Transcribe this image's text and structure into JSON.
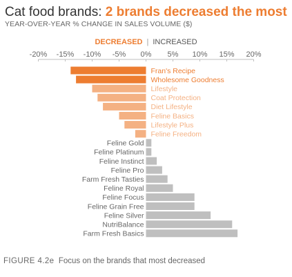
{
  "title": {
    "prefix": "Cat food brands: ",
    "highlight": "2 brands decreased the most"
  },
  "subtitle": "YEAR-OVER-YEAR % CHANGE IN SALES VOLUME ($)",
  "legend": {
    "decreased": "DECREASED",
    "separator": "|",
    "increased": "INCREASED"
  },
  "caption": {
    "figure": "FIGURE 4.2e",
    "text": "Focus on the brands that most decreased"
  },
  "colors": {
    "top_decrease": "#ed7d31",
    "other_decrease": "#f4b183",
    "increase": "#bfbfbf",
    "decrease_label": "#ed7d31",
    "other_decrease_label": "#f4b183",
    "increase_label": "#666666",
    "axis": "#bfbfbf",
    "tick_label": "#666666"
  },
  "chart_data": {
    "type": "bar",
    "orientation": "horizontal",
    "title": "Cat food brands: 2 brands decreased the most",
    "subtitle": "YEAR-OVER-YEAR % CHANGE IN SALES VOLUME ($)",
    "xlim": [
      -20,
      20
    ],
    "xticks": [
      -20,
      -15,
      -10,
      -5,
      0,
      5,
      10,
      15,
      20
    ],
    "xtick_labels": [
      "-20%",
      "-15%",
      "-10%",
      "-5%",
      "0%",
      "5%",
      "10%",
      "15%",
      "20%"
    ],
    "legend": [
      "DECREASED",
      "INCREASED"
    ],
    "legend_position": "top-center",
    "grid": false,
    "bars": [
      {
        "category": "Fran's Recipe",
        "value": -14,
        "group": "top_decrease"
      },
      {
        "category": "Wholesome Goodness",
        "value": -13,
        "group": "top_decrease"
      },
      {
        "category": "Lifestyle",
        "value": -10,
        "group": "other_decrease"
      },
      {
        "category": "Coat Protection",
        "value": -9,
        "group": "other_decrease"
      },
      {
        "category": "Diet Lifestyle",
        "value": -8,
        "group": "other_decrease"
      },
      {
        "category": "Feline Basics",
        "value": -5,
        "group": "other_decrease"
      },
      {
        "category": "Lifestyle Plus",
        "value": -4,
        "group": "other_decrease"
      },
      {
        "category": "Feline Freedom",
        "value": -2,
        "group": "other_decrease"
      },
      {
        "category": "Feline Gold",
        "value": 1,
        "group": "increase"
      },
      {
        "category": "Feline Platinum",
        "value": 1,
        "group": "increase"
      },
      {
        "category": "Feline Instinct",
        "value": 2,
        "group": "increase"
      },
      {
        "category": "Feline Pro",
        "value": 3,
        "group": "increase"
      },
      {
        "category": "Farm Fresh Tasties",
        "value": 4,
        "group": "increase"
      },
      {
        "category": "Feline Royal",
        "value": 5,
        "group": "increase"
      },
      {
        "category": "Feline Focus",
        "value": 9,
        "group": "increase"
      },
      {
        "category": "Feline Grain Free",
        "value": 9,
        "group": "increase"
      },
      {
        "category": "Feline Silver",
        "value": 12,
        "group": "increase"
      },
      {
        "category": "NutriBalance",
        "value": 16,
        "group": "increase"
      },
      {
        "category": "Farm Fresh Basics",
        "value": 17,
        "group": "increase"
      }
    ]
  }
}
